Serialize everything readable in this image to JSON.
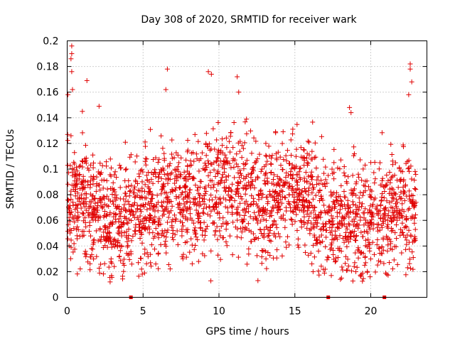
{
  "chart_data": {
    "type": "scatter",
    "title": "Day 308 of 2020, SRMTID for receiver wark",
    "xlabel": "GPS time / hours",
    "ylabel": "SRMTID / TECUs",
    "xlim": [
      0,
      23.7
    ],
    "ylim": [
      0,
      0.2
    ],
    "x_ticks": [
      "0",
      "5",
      "10",
      "15",
      "20"
    ],
    "x_tick_values": [
      0,
      5,
      10,
      15,
      20
    ],
    "y_ticks": [
      "0",
      "0.02",
      "0.04",
      "0.06",
      "0.08",
      "0.1",
      "0.12",
      "0.14",
      "0.16",
      "0.18",
      "0.2"
    ],
    "y_tick_values": [
      0,
      0.02,
      0.04,
      0.06,
      0.08,
      0.1,
      0.12,
      0.14,
      0.16,
      0.18,
      0.2
    ],
    "grid": true,
    "marker": "+",
    "color": "#e00000",
    "zero_markers_x": [
      4.2,
      17.2,
      20.9
    ],
    "trend": {
      "x": [
        0,
        1,
        2,
        3,
        4,
        5,
        6,
        7,
        8,
        9,
        10,
        11,
        12,
        13,
        14,
        15,
        16,
        17,
        18,
        19,
        20,
        21,
        22,
        23
      ],
      "y": [
        0.075,
        0.072,
        0.07,
        0.058,
        0.066,
        0.068,
        0.076,
        0.078,
        0.072,
        0.08,
        0.086,
        0.085,
        0.08,
        0.075,
        0.08,
        0.082,
        0.078,
        0.06,
        0.06,
        0.062,
        0.058,
        0.064,
        0.07,
        0.064
      ],
      "spread": 0.022
    },
    "extreme_points": [
      {
        "x": 0.3,
        "y": 0.196
      },
      {
        "x": 0.3,
        "y": 0.19
      },
      {
        "x": 0.25,
        "y": 0.186
      },
      {
        "x": 0.3,
        "y": 0.176
      },
      {
        "x": 0.35,
        "y": 0.162
      },
      {
        "x": 0.05,
        "y": 0.158
      },
      {
        "x": 1.3,
        "y": 0.169
      },
      {
        "x": 6.6,
        "y": 0.178
      },
      {
        "x": 6.5,
        "y": 0.162
      },
      {
        "x": 9.3,
        "y": 0.176
      },
      {
        "x": 9.5,
        "y": 0.174
      },
      {
        "x": 11.2,
        "y": 0.172
      },
      {
        "x": 11.3,
        "y": 0.16
      },
      {
        "x": 22.6,
        "y": 0.182
      },
      {
        "x": 22.6,
        "y": 0.178
      },
      {
        "x": 22.7,
        "y": 0.168
      },
      {
        "x": 22.5,
        "y": 0.158
      },
      {
        "x": 1.0,
        "y": 0.145
      },
      {
        "x": 2.1,
        "y": 0.149
      },
      {
        "x": 18.6,
        "y": 0.148
      },
      {
        "x": 18.7,
        "y": 0.144
      },
      {
        "x": 4.9,
        "y": 0.022
      },
      {
        "x": 5.1,
        "y": 0.019
      },
      {
        "x": 3.1,
        "y": 0.024
      },
      {
        "x": 18.0,
        "y": 0.014
      },
      {
        "x": 16.2,
        "y": 0.02
      },
      {
        "x": 17.4,
        "y": 0.017
      },
      {
        "x": 19.6,
        "y": 0.025
      },
      {
        "x": 22.8,
        "y": 0.031
      }
    ]
  }
}
